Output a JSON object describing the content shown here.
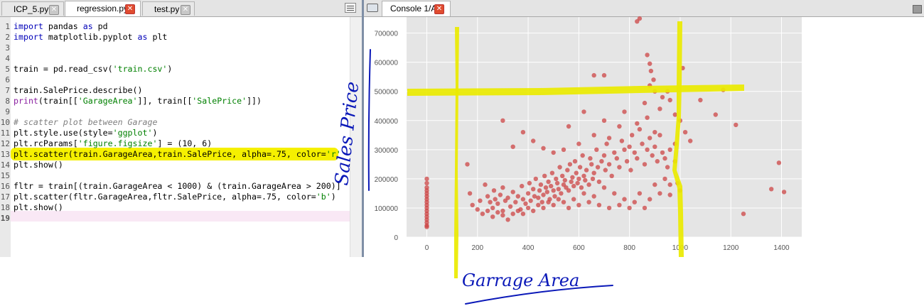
{
  "editor": {
    "tabs": [
      {
        "label": "ICP_5.py",
        "active": false
      },
      {
        "label": "regression.py",
        "active": true
      },
      {
        "label": "test.py",
        "active": false
      }
    ],
    "lines": [
      {
        "n": "1",
        "tokens": [
          {
            "t": "import",
            "c": "kw"
          },
          {
            "t": " pandas "
          },
          {
            "t": "as",
            "c": "kw"
          },
          {
            "t": " pd"
          }
        ]
      },
      {
        "n": "2",
        "tokens": [
          {
            "t": "import",
            "c": "kw"
          },
          {
            "t": " matplotlib.pyplot "
          },
          {
            "t": "as",
            "c": "kw"
          },
          {
            "t": " plt"
          }
        ]
      },
      {
        "n": "3",
        "tokens": []
      },
      {
        "n": "4",
        "tokens": []
      },
      {
        "n": "5",
        "tokens": [
          {
            "t": "train = pd.read_csv("
          },
          {
            "t": "'train.csv'",
            "c": "str"
          },
          {
            "t": ")"
          }
        ]
      },
      {
        "n": "6",
        "tokens": []
      },
      {
        "n": "7",
        "tokens": [
          {
            "t": "train.SalePrice.describe()"
          }
        ]
      },
      {
        "n": "8",
        "tokens": [
          {
            "t": "print",
            "c": "fn"
          },
          {
            "t": "(train[["
          },
          {
            "t": "'GarageArea'",
            "c": "str"
          },
          {
            "t": "]], train[["
          },
          {
            "t": "'SalePrice'",
            "c": "str"
          },
          {
            "t": "]])"
          }
        ]
      },
      {
        "n": "9",
        "tokens": []
      },
      {
        "n": "10",
        "tokens": [
          {
            "t": "# scatter plot between Garage",
            "c": "cm"
          }
        ]
      },
      {
        "n": "11",
        "tokens": [
          {
            "t": "plt.style.use(style="
          },
          {
            "t": "'ggplot'",
            "c": "str"
          },
          {
            "t": ")"
          }
        ]
      },
      {
        "n": "12",
        "tokens": [
          {
            "t": "plt.rcParams["
          },
          {
            "t": "'figure.figsize'",
            "c": "str"
          },
          {
            "t": "] = (10, 6)"
          }
        ]
      },
      {
        "n": "13",
        "tokens": [
          {
            "t": "plt.scatter(train.GarageArea,train.SalePrice, alpha=.75, color="
          },
          {
            "t": "'r'",
            "c": "str"
          }
        ]
      },
      {
        "n": "14",
        "tokens": [
          {
            "t": "plt.show()"
          }
        ]
      },
      {
        "n": "15",
        "tokens": []
      },
      {
        "n": "16",
        "tokens": [
          {
            "t": "fltr = train[(train.GarageArea < 1000) & (train.GarageArea > 200)]"
          }
        ]
      },
      {
        "n": "17",
        "tokens": [
          {
            "t": "plt.scatter(fltr.GarageArea,fltr.SalePrice, alpha=.75, color="
          },
          {
            "t": "'b'",
            "c": "str"
          },
          {
            "t": ")"
          }
        ]
      },
      {
        "n": "18",
        "tokens": [
          {
            "t": "plt.show()"
          }
        ]
      },
      {
        "n": "19",
        "tokens": []
      }
    ]
  },
  "console": {
    "tab_label": "Console 1/A"
  },
  "annotations": {
    "y_handwriting": "Sales Price",
    "x_handwriting": "Garrage Area",
    "highlight_color": "#eaea00",
    "ink_color": "#0a18b8"
  },
  "chart_data": {
    "type": "scatter",
    "xlim": [
      -80,
      1480
    ],
    "ylim": [
      0,
      755000
    ],
    "xticks": [
      0,
      200,
      400,
      600,
      800,
      1000,
      1200,
      1400
    ],
    "yticks": [
      0,
      100000,
      200000,
      300000,
      400000,
      500000,
      600000,
      700000
    ],
    "grid": true,
    "color": "#cc4444",
    "alpha": 0.75,
    "points": [
      [
        0,
        200000
      ],
      [
        0,
        185000
      ],
      [
        0,
        170000
      ],
      [
        0,
        160000
      ],
      [
        0,
        150000
      ],
      [
        0,
        140000
      ],
      [
        0,
        130000
      ],
      [
        0,
        120000
      ],
      [
        0,
        110000
      ],
      [
        0,
        100000
      ],
      [
        0,
        90000
      ],
      [
        0,
        80000
      ],
      [
        0,
        70000
      ],
      [
        0,
        60000
      ],
      [
        0,
        50000
      ],
      [
        0,
        40000
      ],
      [
        0,
        35000
      ],
      [
        160,
        250000
      ],
      [
        170,
        150000
      ],
      [
        180,
        110000
      ],
      [
        200,
        95000
      ],
      [
        210,
        125000
      ],
      [
        230,
        180000
      ],
      [
        240,
        140000
      ],
      [
        250,
        120000
      ],
      [
        260,
        100000
      ],
      [
        265,
        160000
      ],
      [
        270,
        130000
      ],
      [
        280,
        115000
      ],
      [
        290,
        145000
      ],
      [
        300,
        90000
      ],
      [
        300,
        170000
      ],
      [
        310,
        125000
      ],
      [
        320,
        135000
      ],
      [
        330,
        105000
      ],
      [
        340,
        155000
      ],
      [
        350,
        120000
      ],
      [
        360,
        140000
      ],
      [
        370,
        95000
      ],
      [
        375,
        175000
      ],
      [
        380,
        130000
      ],
      [
        390,
        115000
      ],
      [
        400,
        150000
      ],
      [
        405,
        185000
      ],
      [
        410,
        125000
      ],
      [
        420,
        165000
      ],
      [
        425,
        140000
      ],
      [
        430,
        200000
      ],
      [
        440,
        135000
      ],
      [
        445,
        160000
      ],
      [
        450,
        180000
      ],
      [
        455,
        120000
      ],
      [
        460,
        145000
      ],
      [
        465,
        210000
      ],
      [
        470,
        170000
      ],
      [
        475,
        155000
      ],
      [
        480,
        190000
      ],
      [
        485,
        130000
      ],
      [
        490,
        175000
      ],
      [
        495,
        220000
      ],
      [
        500,
        160000
      ],
      [
        505,
        140000
      ],
      [
        510,
        200000
      ],
      [
        515,
        185000
      ],
      [
        520,
        165000
      ],
      [
        525,
        240000
      ],
      [
        530,
        150000
      ],
      [
        535,
        210000
      ],
      [
        540,
        180000
      ],
      [
        545,
        195000
      ],
      [
        550,
        170000
      ],
      [
        555,
        230000
      ],
      [
        560,
        160000
      ],
      [
        565,
        250000
      ],
      [
        570,
        190000
      ],
      [
        575,
        205000
      ],
      [
        580,
        175000
      ],
      [
        585,
        260000
      ],
      [
        590,
        220000
      ],
      [
        595,
        185000
      ],
      [
        600,
        200000
      ],
      [
        605,
        240000
      ],
      [
        610,
        170000
      ],
      [
        615,
        280000
      ],
      [
        620,
        210000
      ],
      [
        625,
        195000
      ],
      [
        630,
        230000
      ],
      [
        640,
        180000
      ],
      [
        645,
        270000
      ],
      [
        650,
        250000
      ],
      [
        655,
        200000
      ],
      [
        660,
        220000
      ],
      [
        670,
        300000
      ],
      [
        675,
        240000
      ],
      [
        680,
        190000
      ],
      [
        690,
        260000
      ],
      [
        700,
        280000
      ],
      [
        705,
        230000
      ],
      [
        710,
        320000
      ],
      [
        720,
        250000
      ],
      [
        730,
        210000
      ],
      [
        740,
        290000
      ],
      [
        750,
        270000
      ],
      [
        760,
        240000
      ],
      [
        770,
        330000
      ],
      [
        780,
        300000
      ],
      [
        790,
        260000
      ],
      [
        800,
        310000
      ],
      [
        805,
        230000
      ],
      [
        810,
        350000
      ],
      [
        820,
        290000
      ],
      [
        830,
        270000
      ],
      [
        840,
        370000
      ],
      [
        850,
        320000
      ],
      [
        860,
        250000
      ],
      [
        870,
        300000
      ],
      [
        880,
        340000
      ],
      [
        890,
        280000
      ],
      [
        900,
        310000
      ],
      [
        910,
        260000
      ],
      [
        920,
        350000
      ],
      [
        930,
        290000
      ],
      [
        940,
        200000
      ],
      [
        950,
        240000
      ],
      [
        960,
        180000
      ],
      [
        300,
        400000
      ],
      [
        340,
        310000
      ],
      [
        380,
        360000
      ],
      [
        420,
        330000
      ],
      [
        460,
        305000
      ],
      [
        500,
        290000
      ],
      [
        540,
        300000
      ],
      [
        560,
        380000
      ],
      [
        600,
        320000
      ],
      [
        620,
        430000
      ],
      [
        660,
        350000
      ],
      [
        700,
        400000
      ],
      [
        720,
        340000
      ],
      [
        760,
        380000
      ],
      [
        780,
        430000
      ],
      [
        830,
        390000
      ],
      [
        870,
        410000
      ],
      [
        900,
        360000
      ],
      [
        920,
        440000
      ],
      [
        860,
        460000
      ],
      [
        880,
        520000
      ],
      [
        900,
        500000
      ],
      [
        930,
        480000
      ],
      [
        960,
        470000
      ],
      [
        980,
        420000
      ],
      [
        1000,
        400000
      ],
      [
        1020,
        360000
      ],
      [
        1040,
        330000
      ],
      [
        1080,
        470000
      ],
      [
        1140,
        420000
      ],
      [
        1170,
        505000
      ],
      [
        1220,
        385000
      ],
      [
        1360,
        165000
      ],
      [
        1390,
        255000
      ],
      [
        1410,
        155000
      ],
      [
        1250,
        80000
      ],
      [
        660,
        555000
      ],
      [
        700,
        555000
      ],
      [
        830,
        740000
      ],
      [
        840,
        750000
      ],
      [
        870,
        625000
      ],
      [
        880,
        595000
      ],
      [
        885,
        570000
      ],
      [
        895,
        540000
      ],
      [
        1010,
        580000
      ],
      [
        950,
        500000
      ],
      [
        980,
        320000
      ],
      [
        1000,
        160000
      ],
      [
        990,
        185000
      ],
      [
        960,
        145000
      ],
      [
        980,
        260000
      ],
      [
        940,
        270000
      ],
      [
        960,
        300000
      ],
      [
        920,
        150000
      ],
      [
        900,
        180000
      ],
      [
        880,
        130000
      ],
      [
        860,
        100000
      ],
      [
        840,
        150000
      ],
      [
        820,
        120000
      ],
      [
        800,
        100000
      ],
      [
        780,
        130000
      ],
      [
        760,
        110000
      ],
      [
        740,
        150000
      ],
      [
        720,
        100000
      ],
      [
        700,
        170000
      ],
      [
        680,
        110000
      ],
      [
        660,
        140000
      ],
      [
        640,
        120000
      ],
      [
        620,
        150000
      ],
      [
        600,
        110000
      ],
      [
        580,
        130000
      ],
      [
        560,
        100000
      ],
      [
        540,
        120000
      ],
      [
        520,
        130000
      ],
      [
        500,
        110000
      ],
      [
        480,
        120000
      ],
      [
        460,
        100000
      ],
      [
        440,
        110000
      ],
      [
        420,
        90000
      ],
      [
        400,
        100000
      ],
      [
        380,
        80000
      ],
      [
        360,
        90000
      ],
      [
        340,
        80000
      ],
      [
        320,
        60000
      ],
      [
        300,
        75000
      ],
      [
        280,
        85000
      ],
      [
        260,
        70000
      ],
      [
        240,
        90000
      ],
      [
        220,
        80000
      ]
    ]
  }
}
